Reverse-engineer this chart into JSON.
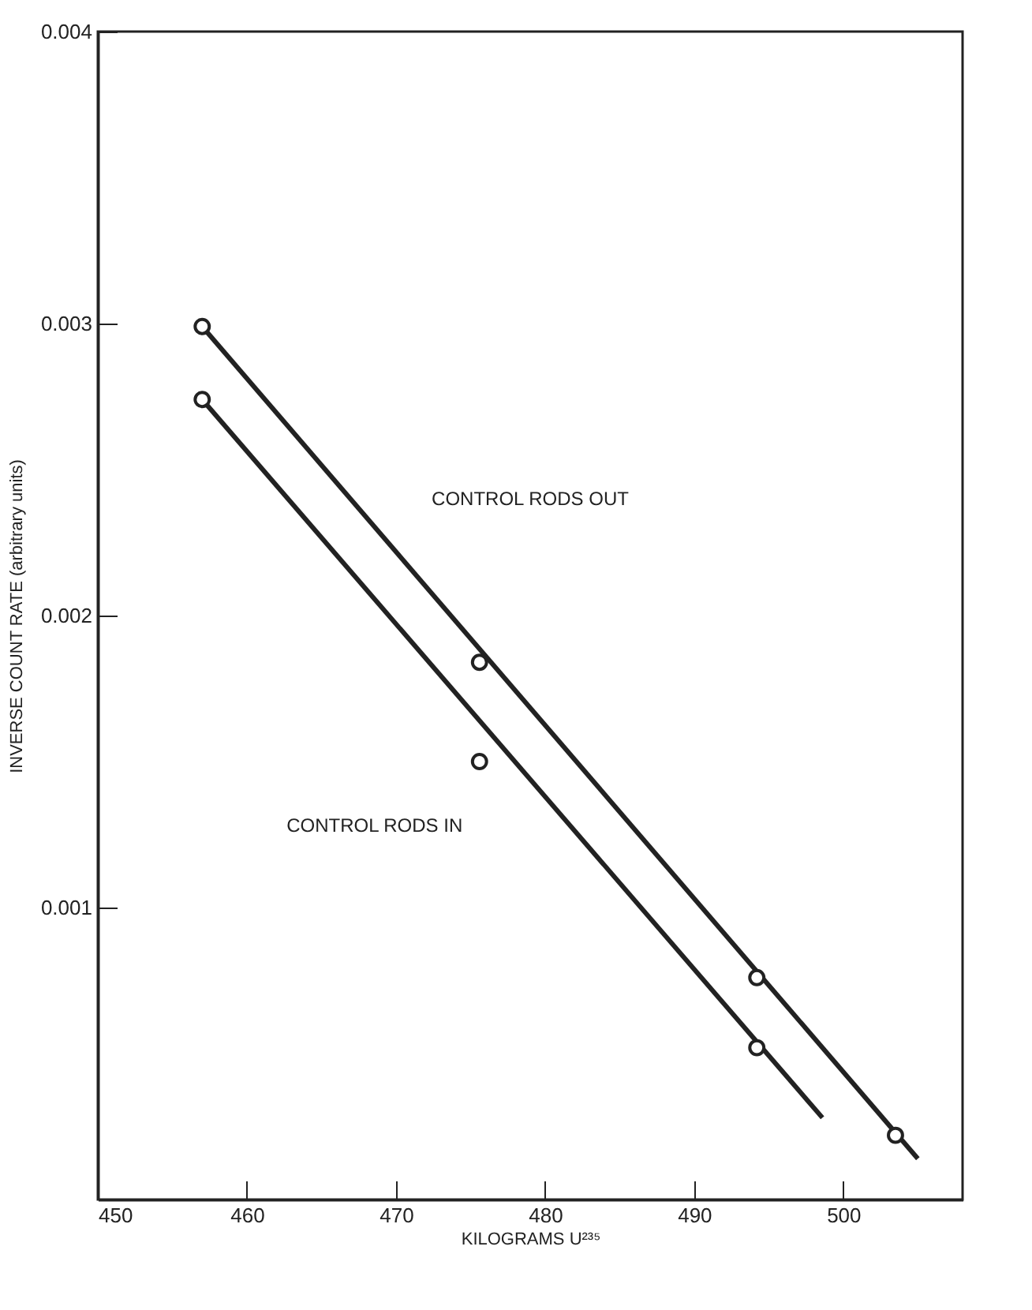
{
  "chart_data": {
    "type": "scatter",
    "xlabel": "KILOGRAMS U²³⁵",
    "ylabel": "INVERSE COUNT RATE (arbitrary units)",
    "xlim": [
      450,
      508
    ],
    "xticks": [
      450,
      460,
      470,
      480,
      490,
      500
    ],
    "ylim": [
      0,
      0.004
    ],
    "yticks": [
      0.001,
      0.002,
      0.003,
      0.004
    ],
    "marker": "circle",
    "grid": false,
    "series": [
      {
        "color": "#222222",
        "x": [
          457,
          475.6,
          494.2,
          503.5
        ],
        "values": [
          0.00299,
          0.00184,
          0.00076,
          0.00022
        ]
      },
      {
        "color": "#222222",
        "x": [
          457,
          475.6,
          494.2
        ],
        "values": [
          0.00274,
          0.0015,
          0.00052
        ]
      },
      {
        "type": "line",
        "marker": "none",
        "color": "#222222",
        "x": [
          457,
          505
        ],
        "values": [
          0.00299,
          0.00014
        ]
      },
      {
        "type": "line",
        "marker": "none",
        "color": "#222222",
        "x": [
          457,
          498.6
        ],
        "values": [
          0.00274,
          0.00028
        ]
      }
    ],
    "annotations": [
      "CONTROL RODS OUT",
      "CONTROL RODS IN"
    ]
  }
}
